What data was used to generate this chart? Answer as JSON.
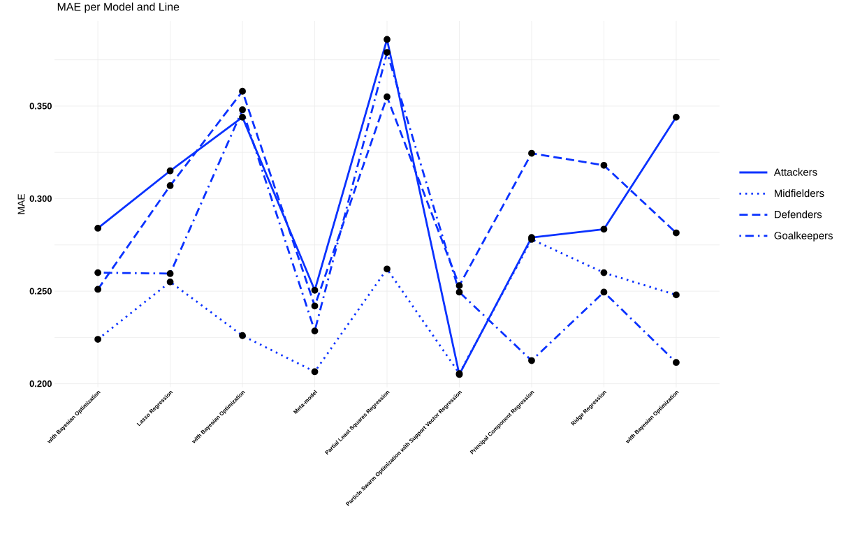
{
  "chart_data": {
    "type": "line",
    "title": "MAE per Model and Line",
    "ylabel": "MAE",
    "categories": [
      "with Bayesian Optimization",
      "Lasso Regression",
      "with Bayesian Optimization",
      "Meta-model",
      "Partial Least Squares Regression",
      "Particle Swarm Optimization with Support Vector Regression",
      "Principal Component Regression",
      "Ridge Regression",
      "with Bayesian Optimization"
    ],
    "series": [
      {
        "name": "Attackers",
        "color": "#0a32ff",
        "line_style": "solid",
        "values": [
          0.284,
          0.315,
          0.344,
          0.2505,
          0.386,
          0.205,
          0.279,
          0.2835,
          0.344
        ]
      },
      {
        "name": "Midfielders",
        "color": "#0a32ff",
        "line_style": "dotted",
        "values": [
          0.224,
          0.255,
          0.226,
          0.2065,
          0.262,
          0.2055,
          0.278,
          0.26,
          0.248
        ]
      },
      {
        "name": "Defenders",
        "color": "#0a32ff",
        "line_style": "dashed",
        "values": [
          0.251,
          0.307,
          0.358,
          0.242,
          0.355,
          0.253,
          0.3245,
          0.318,
          0.2815
        ]
      },
      {
        "name": "Goalkeepers",
        "color": "#0a32ff",
        "line_style": "dashdot",
        "values": [
          0.26,
          0.2595,
          0.348,
          0.2285,
          0.379,
          0.2495,
          0.2125,
          0.2495,
          0.2115
        ]
      }
    ],
    "ylim": [
      0.198,
      0.396
    ],
    "yticks": [
      {
        "value": 0.2,
        "label": "0.200"
      },
      {
        "value": 0.225,
        "label": null
      },
      {
        "value": 0.25,
        "label": "0.250"
      },
      {
        "value": 0.275,
        "label": null
      },
      {
        "value": 0.3,
        "label": "0.300"
      },
      {
        "value": 0.325,
        "label": null
      },
      {
        "value": 0.35,
        "label": "0.350"
      },
      {
        "value": 0.375,
        "label": null
      }
    ],
    "grid": true,
    "legend": "right",
    "marker": "circle"
  }
}
